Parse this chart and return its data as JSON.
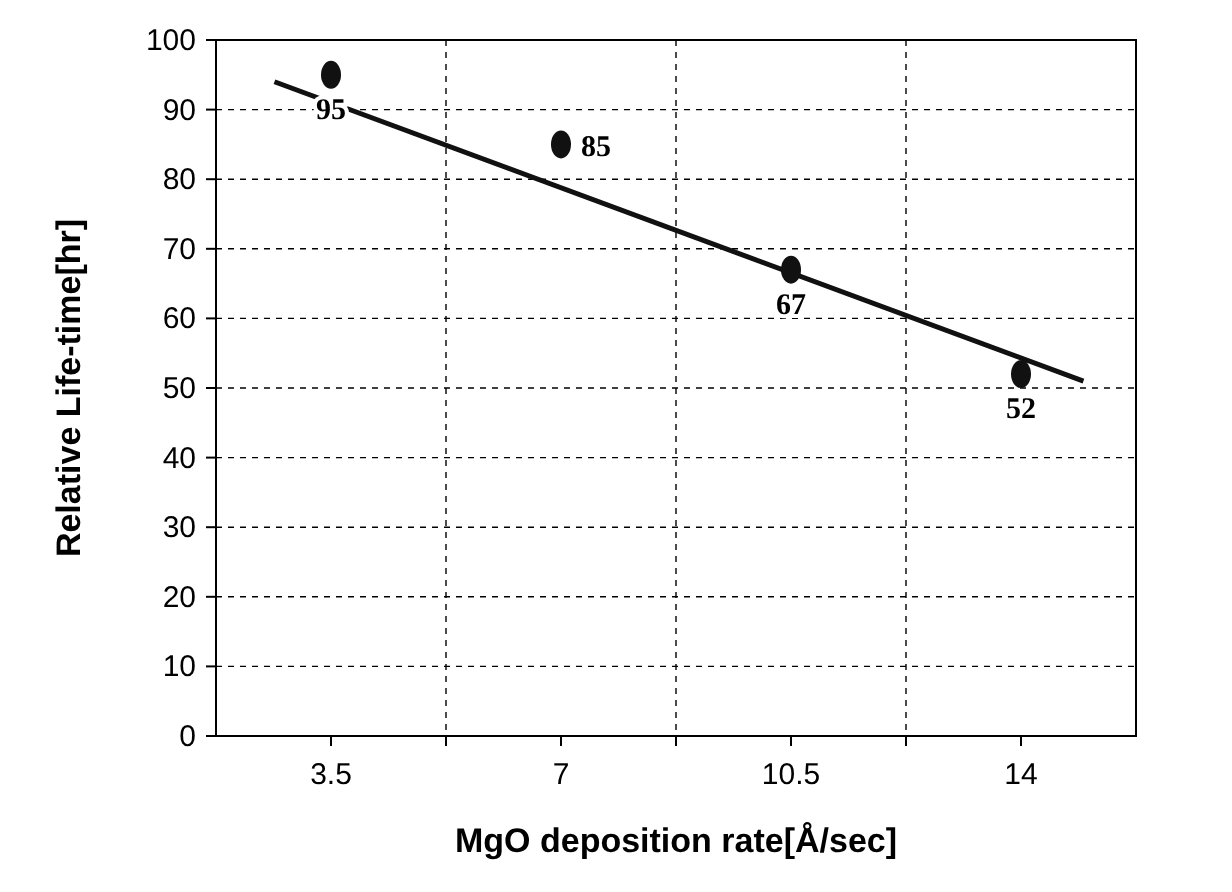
{
  "chart_data": {
    "type": "scatter",
    "xlabel": "MgO deposition rate[Å/sec]",
    "ylabel": "Relative Life-time[hr]",
    "xlim": [
      1.75,
      15.75
    ],
    "xticks": [
      3.5,
      {
        "value": 5.25,
        "label": null
      },
      7,
      {
        "value": 8.75,
        "label": null
      },
      10.5,
      {
        "value": 12.25,
        "label": null
      },
      14
    ],
    "ylim": [
      0,
      100
    ],
    "yticks": [
      0,
      10,
      20,
      30,
      40,
      50,
      60,
      70,
      80,
      90,
      100
    ],
    "grid": true,
    "marker": "circle",
    "series": [
      {
        "color": "#111111",
        "x": [
          3.5,
          7,
          10.5,
          14
        ],
        "values": [
          95,
          85,
          67,
          52
        ],
        "value_labels": [
          "95",
          "85",
          "67",
          "52"
        ]
      },
      {
        "type": "line",
        "color": "#111111",
        "x": [
          2.64,
          14.95
        ],
        "values": [
          94,
          51
        ],
        "marker": "none"
      }
    ]
  }
}
